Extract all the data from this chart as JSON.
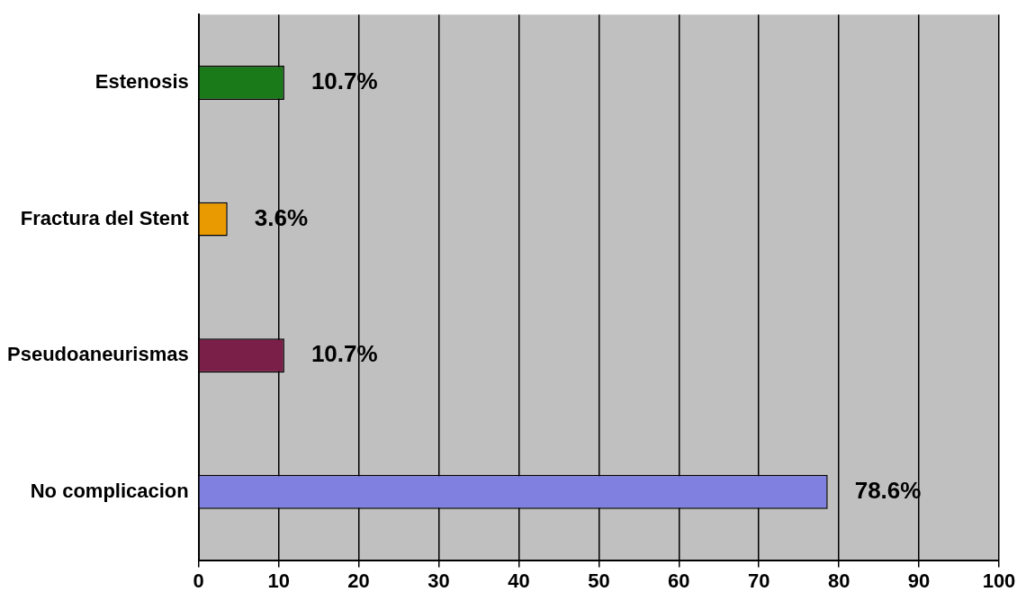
{
  "chart_data": {
    "type": "bar",
    "orientation": "horizontal",
    "categories": [
      "Estenosis",
      "Fractura del Stent",
      "Pseudoaneurismas",
      "No complicacion"
    ],
    "values": [
      10.7,
      3.6,
      10.7,
      78.6
    ],
    "colors": [
      "#1a7a1a",
      "#e89a00",
      "#7a2048",
      "#8080e0"
    ],
    "value_labels": [
      "10.7%",
      "3.6%",
      "10.7%",
      "78.6%"
    ],
    "xlim": [
      0,
      100
    ],
    "xticks": [
      0,
      10,
      20,
      30,
      40,
      50,
      60,
      70,
      80,
      90,
      100
    ],
    "grid": "x"
  }
}
